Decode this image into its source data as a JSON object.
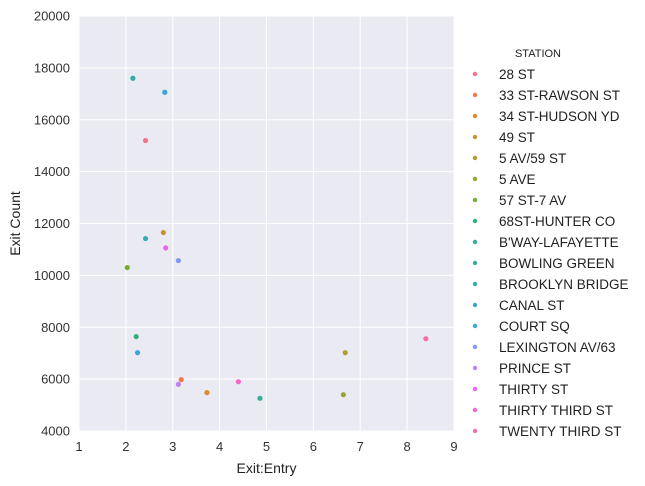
{
  "chart_data": {
    "type": "scatter",
    "xlabel": "Exit:Entry",
    "ylabel": "Exit Count",
    "xlim": [
      1,
      9
    ],
    "ylim": [
      4000,
      20000
    ],
    "xticks": [
      1,
      2,
      3,
      4,
      5,
      6,
      7,
      8,
      9
    ],
    "yticks": [
      4000,
      6000,
      8000,
      10000,
      12000,
      14000,
      16000,
      18000,
      20000
    ],
    "grid": true,
    "legend_title": "STATION",
    "legend_position": "right",
    "series": [
      {
        "name": "28 ST",
        "color": "#f77189",
        "points": [
          [
            2.42,
            15200
          ]
        ]
      },
      {
        "name": "33 ST-RAWSON ST",
        "color": "#f7754f",
        "points": [
          [
            3.18,
            5980
          ]
        ]
      },
      {
        "name": "34 ST-HUDSON YD",
        "color": "#dc8932",
        "points": [
          [
            3.73,
            5480
          ]
        ]
      },
      {
        "name": "49 ST",
        "color": "#c39532",
        "points": [
          [
            2.8,
            11650
          ]
        ]
      },
      {
        "name": "5 AV/59 ST",
        "color": "#ae9d31",
        "points": [
          [
            6.68,
            7020
          ]
        ]
      },
      {
        "name": "5 AVE",
        "color": "#97a431",
        "points": [
          [
            6.64,
            5400
          ]
        ]
      },
      {
        "name": "57 ST-7 AV",
        "color": "#77ab31",
        "points": [
          [
            2.03,
            10300
          ]
        ]
      },
      {
        "name": "68ST-HUNTER CO",
        "color": "#33b07a",
        "points": [
          [
            2.22,
            7640
          ]
        ]
      },
      {
        "name": "B'WAY-LAFAYETTE",
        "color": "#35ae93",
        "points": [
          [
            4.86,
            5260
          ]
        ]
      },
      {
        "name": "BOWLING GREEN",
        "color": "#36ada4",
        "points": [
          [
            2.15,
            17600
          ]
        ]
      },
      {
        "name": "BROOKLYN BRIDGE",
        "color": "#37abb4",
        "points": [
          [
            2.42,
            11420
          ]
        ]
      },
      {
        "name": "CANAL ST",
        "color": "#38a9c5",
        "points": []
      },
      {
        "name": "COURT SQ",
        "color": "#3aa5df",
        "points": [
          [
            2.83,
            17060
          ],
          [
            2.25,
            7020
          ]
        ]
      },
      {
        "name": "LEXINGTON AV/63",
        "color": "#8197f4",
        "points": [
          [
            3.12,
            10570
          ]
        ]
      },
      {
        "name": "PRINCE ST",
        "color": "#bb83f4",
        "points": [
          [
            3.12,
            5800
          ]
        ]
      },
      {
        "name": "THIRTY ST",
        "color": "#e866f4",
        "points": [
          [
            2.85,
            11060
          ]
        ]
      },
      {
        "name": "THIRTY THIRD ST",
        "color": "#f565cc",
        "points": [
          [
            4.4,
            5900
          ]
        ]
      },
      {
        "name": "TWENTY THIRD ST",
        "color": "#f66bad",
        "points": [
          [
            8.4,
            7560
          ]
        ]
      }
    ]
  }
}
